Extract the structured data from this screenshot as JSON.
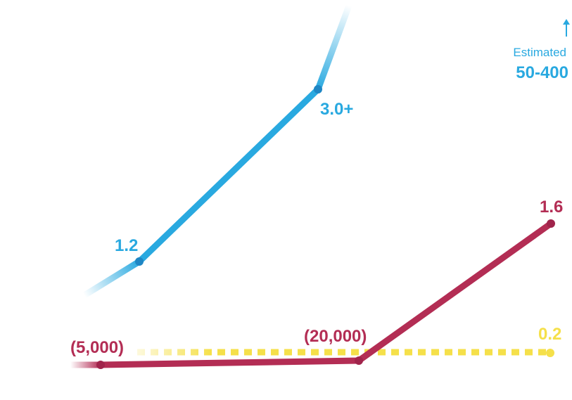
{
  "chart_data": {
    "type": "line",
    "title": "",
    "xlabel": "",
    "ylabel": "",
    "grid": false,
    "series": [
      {
        "key": "blue",
        "color": "#29a9e0",
        "points": [
          {
            "x": 0,
            "y": 1.2,
            "label": "1.2"
          },
          {
            "x": 1,
            "y": 3.0,
            "label": "3.0+"
          }
        ]
      },
      {
        "key": "red",
        "color": "#b32d54",
        "points": [
          {
            "x": 0,
            "y": 0.0,
            "label": "(5,000)"
          },
          {
            "x": 1,
            "y": 0.02,
            "label": "(20,000)"
          },
          {
            "x": 2,
            "y": 1.6,
            "label": "1.6"
          }
        ]
      },
      {
        "key": "yellow",
        "color": "#f5e04a",
        "points": [
          {
            "x": 2,
            "y": 0.2,
            "label": "0.2"
          }
        ]
      }
    ],
    "annotation": {
      "caption": "Estimated",
      "value": "50-400",
      "color": "#29a9e0"
    }
  }
}
